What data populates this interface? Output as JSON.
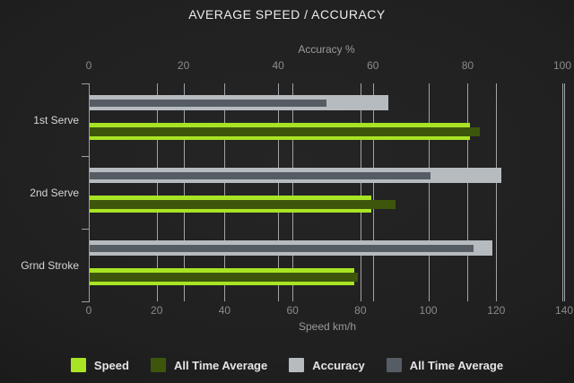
{
  "title": "AVERAGE SPEED / ACCURACY",
  "chart_data": {
    "type": "bar",
    "orientation": "horizontal",
    "title": "AVERAGE SPEED / ACCURACY",
    "categories": [
      "1st Serve",
      "2nd Serve",
      "Grnd Stroke"
    ],
    "axes": {
      "top": {
        "label": "Accuracy %",
        "min": 0,
        "max": 100,
        "ticks": [
          0,
          20,
          40,
          60,
          80,
          100
        ]
      },
      "bottom": {
        "label": "Speed km/h",
        "min": 0,
        "max": 140,
        "ticks": [
          0,
          20,
          40,
          60,
          80,
          100,
          120,
          140
        ]
      }
    },
    "series": [
      {
        "name": "Speed",
        "axis": "bottom",
        "color": "#a8e424",
        "values": [
          112,
          83,
          78
        ]
      },
      {
        "name": "All Time Average",
        "axis": "bottom",
        "color": "#3d560c",
        "values": [
          115,
          90,
          79
        ]
      },
      {
        "name": "Accuracy",
        "axis": "top",
        "color": "#b5bbbf",
        "values": [
          63,
          87,
          85
        ]
      },
      {
        "name": "All Time Average",
        "axis": "top",
        "color": "#565c63",
        "values": [
          50,
          72,
          81
        ]
      }
    ],
    "grid": true,
    "legend_position": "bottom",
    "background": "dark"
  },
  "colors": {
    "speed": "#a8e424",
    "speed_all_time_average": "#3d560c",
    "accuracy": "#b5bbbf",
    "accuracy_all_time_average": "#565c63",
    "gridline": "#bcc1c4",
    "text_bright": "#ededed",
    "text_muted": "#8b8b8b"
  }
}
